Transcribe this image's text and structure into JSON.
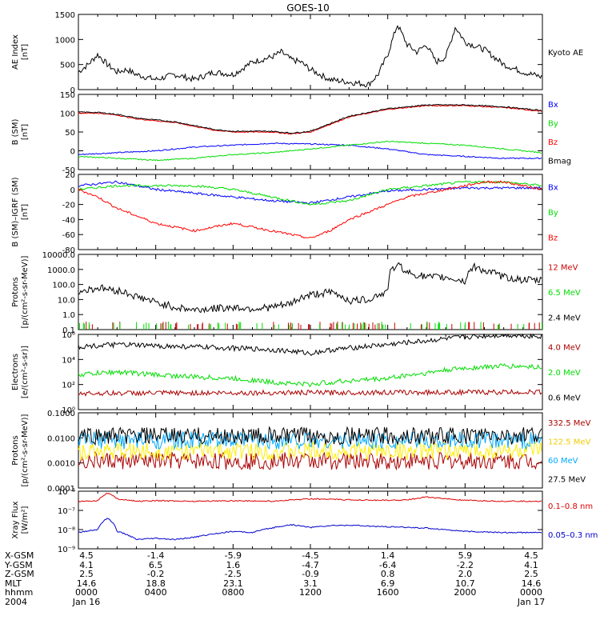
{
  "title": "GOES-10",
  "chart_data": [
    {
      "type": "line",
      "id": "ae",
      "ylabel": [
        "AE Index",
        "[nT]"
      ],
      "ylim": [
        0,
        1500
      ],
      "yticks": [
        "0",
        "500",
        "1000",
        "1500"
      ],
      "series": [
        {
          "name": "Kyoto AE",
          "color": "#000000",
          "x": [
            0,
            0.5,
            1,
            1.5,
            2,
            2.5,
            3,
            3.5,
            4,
            5,
            6,
            7,
            8,
            9,
            10,
            10.5,
            11,
            11.5,
            12,
            13,
            14,
            15,
            15.5,
            16,
            16.5,
            17,
            17.5,
            18,
            18.5,
            19,
            19.5,
            20,
            21,
            22,
            23,
            24
          ],
          "y": [
            350,
            500,
            700,
            500,
            350,
            400,
            300,
            250,
            200,
            300,
            200,
            350,
            300,
            550,
            650,
            750,
            600,
            550,
            400,
            200,
            150,
            100,
            300,
            700,
            1300,
            900,
            750,
            900,
            550,
            650,
            1250,
            950,
            800,
            500,
            350,
            250
          ]
        }
      ]
    },
    {
      "type": "line",
      "id": "bsm",
      "ylabel": [
        "B (SM)",
        "[nT]"
      ],
      "ylim": [
        -50,
        150
      ],
      "yticks": [
        "-50",
        "0",
        "50",
        "100",
        "150"
      ],
      "series": [
        {
          "name": "Bx",
          "color": "#0000ff",
          "x": [
            0,
            2,
            4,
            6,
            8,
            10,
            12,
            14,
            16,
            18,
            20,
            22,
            24
          ],
          "y": [
            -10,
            -5,
            0,
            10,
            15,
            20,
            18,
            15,
            5,
            -10,
            -15,
            -20,
            -20
          ]
        },
        {
          "name": "By",
          "color": "#00dd00",
          "x": [
            0,
            2,
            4,
            6,
            8,
            10,
            12,
            14,
            16,
            18,
            20,
            22,
            24
          ],
          "y": [
            -15,
            -20,
            -25,
            -20,
            -10,
            -5,
            5,
            15,
            25,
            20,
            15,
            5,
            -5
          ]
        },
        {
          "name": "Bz",
          "color": "#ff0000",
          "x": [
            0,
            1,
            2,
            3,
            4,
            5,
            6,
            7,
            8,
            9,
            10,
            11,
            12,
            13,
            14,
            16,
            18,
            20,
            22,
            24
          ],
          "y": [
            100,
            100,
            95,
            85,
            80,
            75,
            65,
            55,
            50,
            50,
            50,
            45,
            50,
            70,
            90,
            110,
            120,
            120,
            115,
            105
          ]
        },
        {
          "name": "Bmag",
          "color": "#000000",
          "x": [
            0,
            1,
            2,
            3,
            4,
            5,
            6,
            7,
            8,
            9,
            10,
            11,
            12,
            13,
            14,
            16,
            18,
            20,
            22,
            24
          ],
          "y": [
            103,
            102,
            97,
            87,
            82,
            77,
            67,
            57,
            52,
            52,
            52,
            47,
            52,
            72,
            92,
            112,
            122,
            122,
            117,
            107
          ]
        }
      ]
    },
    {
      "type": "line",
      "id": "bdiff",
      "ylabel": [
        "B (SM)–IGRF (SM)",
        "[nT]"
      ],
      "ylim": [
        -80,
        20
      ],
      "yticks": [
        "-80",
        "-60",
        "-40",
        "-20",
        "0",
        "20"
      ],
      "series": [
        {
          "name": "Bx",
          "color": "#0000ff",
          "x": [
            0,
            2,
            4,
            6,
            8,
            10,
            12,
            14,
            16,
            18,
            20,
            22,
            24
          ],
          "y": [
            5,
            10,
            0,
            -5,
            -10,
            -15,
            -18,
            -10,
            -2,
            0,
            2,
            2,
            2
          ]
        },
        {
          "name": "By",
          "color": "#00dd00",
          "x": [
            0,
            2,
            4,
            6,
            8,
            10,
            12,
            14,
            16,
            18,
            20,
            22,
            24
          ],
          "y": [
            0,
            5,
            5,
            5,
            0,
            -10,
            -20,
            -15,
            0,
            5,
            10,
            10,
            5
          ]
        },
        {
          "name": "Bz",
          "color": "#ff0000",
          "x": [
            0,
            1,
            2,
            3,
            4,
            5,
            6,
            7,
            8,
            9,
            10,
            11,
            12,
            13,
            14,
            15,
            16,
            17,
            18,
            19,
            20,
            21,
            22,
            23,
            24
          ],
          "y": [
            0,
            -10,
            -25,
            -35,
            -45,
            -50,
            -55,
            -50,
            -45,
            -50,
            -55,
            -60,
            -65,
            -55,
            -40,
            -30,
            -20,
            -10,
            -5,
            0,
            5,
            10,
            10,
            5,
            0
          ]
        }
      ]
    },
    {
      "type": "line",
      "id": "protons_lo",
      "scale": "log",
      "ylabel": [
        "Protons",
        "[p/(cm²-s-sr-MeV)]"
      ],
      "ylim": [
        0.1,
        10000
      ],
      "yticks": [
        "0.1",
        "1.0",
        "10.0",
        "100.0",
        "1000.0",
        "10000.0"
      ],
      "series": [
        {
          "name": "12 MeV",
          "color": "#cc0000",
          "x": [
            0,
            24
          ],
          "y": [
            0.1,
            0.1
          ]
        },
        {
          "name": "6.5 MeV",
          "color": "#00dd00",
          "x": [
            0,
            24
          ],
          "y": [
            0.1,
            0.1
          ]
        },
        {
          "name": "2.4 MeV",
          "color": "#000000",
          "x": [
            0,
            1,
            2,
            3,
            4,
            5,
            6,
            7,
            8,
            9,
            10,
            11,
            12,
            13,
            14,
            15,
            16,
            16.5,
            17,
            18,
            19,
            20,
            20.5,
            21,
            22,
            23,
            24
          ],
          "y": [
            30,
            60,
            40,
            15,
            6,
            3,
            2,
            2.5,
            3,
            2.5,
            3,
            5,
            20,
            30,
            8,
            10,
            30,
            2000,
            600,
            300,
            300,
            150,
            1500,
            800,
            300,
            200,
            180
          ]
        }
      ]
    },
    {
      "type": "line",
      "id": "electrons",
      "scale": "log",
      "ylabel": [
        "Electrons",
        "[e/(cm²-s-sr)]"
      ],
      "ylim": [
        1,
        1000000
      ],
      "yticks": [
        "10⁰",
        "10²",
        "10⁴",
        "10⁶"
      ],
      "series": [
        {
          "name": "4.0 MeV",
          "color": "#aa0000",
          "x": [
            0,
            24
          ],
          "y": [
            20,
            25
          ]
        },
        {
          "name": "2.0 MeV",
          "color": "#00dd00",
          "x": [
            0,
            2,
            4,
            6,
            8,
            10,
            12,
            14,
            16,
            18,
            20,
            22,
            24
          ],
          "y": [
            600,
            1000,
            600,
            400,
            300,
            150,
            100,
            200,
            300,
            800,
            2000,
            3000,
            2500
          ]
        },
        {
          "name": "0.6 MeV",
          "color": "#000000",
          "x": [
            0,
            2,
            4,
            6,
            8,
            10,
            12,
            14,
            16,
            18,
            20,
            22,
            24
          ],
          "y": [
            100000,
            150000,
            120000,
            100000,
            80000,
            60000,
            30000,
            80000,
            150000,
            300000,
            600000,
            900000,
            700000
          ]
        }
      ]
    },
    {
      "type": "line",
      "id": "protons_hi",
      "scale": "log",
      "ylabel": [
        "Protons",
        "[p/(cm²-s-sr-MeV)]"
      ],
      "ylim": [
        0.0001,
        0.1
      ],
      "yticks": [
        "0.0001",
        "0.0010",
        "0.0100",
        "0.1000"
      ],
      "series": [
        {
          "name": "332.5 MeV",
          "color": "#aa0000",
          "x": [
            0,
            24
          ],
          "y": [
            0.0012,
            0.0012
          ]
        },
        {
          "name": "122.5 MeV",
          "color": "#ffee00",
          "x": [
            0,
            24
          ],
          "y": [
            0.003,
            0.003
          ]
        },
        {
          "name": "60 MeV",
          "color": "#00aaff",
          "x": [
            0,
            24
          ],
          "y": [
            0.008,
            0.008
          ]
        },
        {
          "name": "27.5 MeV",
          "color": "#000000",
          "x": [
            0,
            24
          ],
          "y": [
            0.012,
            0.012
          ]
        }
      ]
    },
    {
      "type": "line",
      "id": "xray",
      "scale": "log",
      "ylabel": [
        "Xray Flux",
        "[W/m²]"
      ],
      "ylim": [
        1e-09,
        1e-06
      ],
      "yticks": [
        "10⁻⁹",
        "10⁻⁸",
        "10⁻⁷",
        "10⁻⁶"
      ],
      "series": [
        {
          "name": "0.1–0.8 nm",
          "color": "#dd0000",
          "x": [
            0,
            1,
            1.5,
            2,
            3,
            4,
            6,
            8,
            10,
            11,
            12,
            13,
            14,
            15,
            16,
            17,
            18,
            19,
            20,
            22,
            24
          ],
          "y": [
            3e-07,
            3.2e-07,
            8e-07,
            4e-07,
            3e-07,
            3.2e-07,
            3e-07,
            3.2e-07,
            3e-07,
            3.5e-07,
            4e-07,
            3.8e-07,
            3.5e-07,
            3.5e-07,
            3.3e-07,
            3.5e-07,
            5e-07,
            4e-07,
            3.3e-07,
            3e-07,
            3e-07
          ]
        },
        {
          "name": "0.05–0.3 nm",
          "color": "#0000cc",
          "x": [
            0,
            1,
            1.5,
            2,
            3,
            4,
            5,
            6,
            7,
            8,
            9,
            10,
            11,
            12,
            13,
            14,
            15,
            16,
            17,
            18,
            19,
            20,
            22,
            24
          ],
          "y": [
            7e-09,
            1e-08,
            4e-08,
            8e-09,
            3e-09,
            3.5e-09,
            3e-09,
            4e-09,
            6e-09,
            8e-09,
            7e-09,
            1.2e-08,
            1.8e-08,
            1.3e-08,
            1.6e-08,
            1.7e-08,
            1.5e-08,
            1.4e-08,
            1.3e-08,
            1.2e-08,
            1e-08,
            8e-09,
            7e-09,
            7e-09
          ]
        }
      ]
    }
  ],
  "ephemeris": {
    "labels": [
      "X-GSM",
      "Y-GSM",
      "Z-GSM",
      "MLT",
      "hhmm",
      "2004"
    ],
    "columns": [
      [
        "4.5",
        "4.1",
        "2.5",
        "14.6",
        "0000",
        "Jan 16"
      ],
      [
        "-1.4",
        "6.5",
        "-0.2",
        "18.8",
        "0400",
        ""
      ],
      [
        "-5.9",
        "1.6",
        "-2.5",
        "23.1",
        "0800",
        ""
      ],
      [
        "-4.5",
        "-4.7",
        "-0.9",
        "3.1",
        "1200",
        ""
      ],
      [
        "1.4",
        "-6.4",
        "0.8",
        "6.9",
        "1600",
        ""
      ],
      [
        "5.9",
        "-2.2",
        "2.0",
        "10.7",
        "2000",
        ""
      ],
      [
        "4.5",
        "4.1",
        "2.5",
        "14.6",
        "0000",
        "Jan 17"
      ]
    ]
  }
}
